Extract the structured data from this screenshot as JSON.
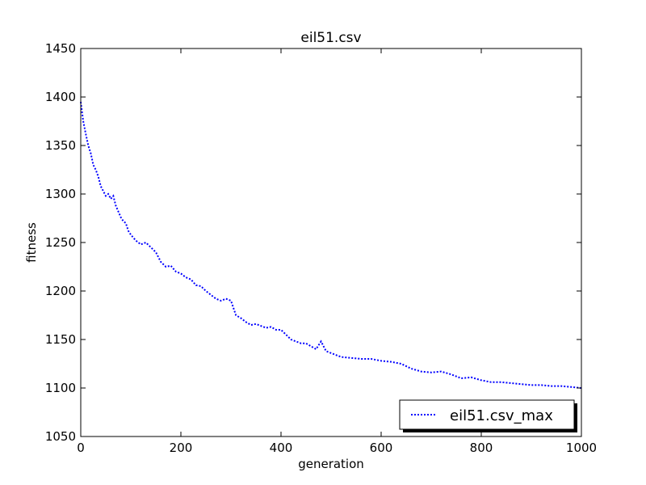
{
  "chart_data": {
    "type": "line",
    "title": "eil51.csv",
    "xlabel": "generation",
    "ylabel": "fitness",
    "xlim": [
      0,
      1000
    ],
    "ylim": [
      1050,
      1450
    ],
    "xticks": [
      0,
      200,
      400,
      600,
      800,
      1000
    ],
    "yticks": [
      1050,
      1100,
      1150,
      1200,
      1250,
      1300,
      1350,
      1400,
      1450
    ],
    "grid": false,
    "legend_position": "lower-right",
    "line_style": "dotted",
    "series": [
      {
        "name": "eil51.csv_max",
        "color": "#0000ff",
        "x": [
          0,
          5,
          10,
          15,
          20,
          25,
          30,
          35,
          40,
          45,
          50,
          55,
          60,
          65,
          70,
          75,
          80,
          85,
          90,
          95,
          100,
          110,
          120,
          130,
          140,
          150,
          160,
          170,
          180,
          190,
          200,
          210,
          220,
          230,
          240,
          250,
          260,
          270,
          280,
          290,
          300,
          310,
          320,
          330,
          340,
          350,
          360,
          370,
          380,
          390,
          400,
          410,
          420,
          430,
          440,
          450,
          460,
          470,
          480,
          490,
          500,
          520,
          540,
          560,
          580,
          600,
          620,
          640,
          660,
          680,
          700,
          720,
          740,
          760,
          780,
          800,
          820,
          840,
          860,
          880,
          900,
          920,
          940,
          960,
          980,
          1000
        ],
        "y": [
          1395,
          1375,
          1362,
          1350,
          1342,
          1330,
          1325,
          1318,
          1308,
          1303,
          1298,
          1300,
          1295,
          1298,
          1288,
          1282,
          1276,
          1272,
          1270,
          1262,
          1258,
          1252,
          1248,
          1250,
          1245,
          1240,
          1230,
          1225,
          1226,
          1220,
          1218,
          1214,
          1212,
          1206,
          1205,
          1200,
          1196,
          1192,
          1190,
          1192,
          1190,
          1175,
          1172,
          1168,
          1165,
          1166,
          1164,
          1162,
          1163,
          1160,
          1160,
          1155,
          1150,
          1148,
          1146,
          1146,
          1143,
          1140,
          1148,
          1138,
          1136,
          1132,
          1131,
          1130,
          1130,
          1128,
          1127,
          1125,
          1120,
          1117,
          1116,
          1117,
          1114,
          1110,
          1111,
          1108,
          1106,
          1106,
          1105,
          1104,
          1103,
          1103,
          1102,
          1102,
          1101,
          1100
        ]
      }
    ]
  }
}
